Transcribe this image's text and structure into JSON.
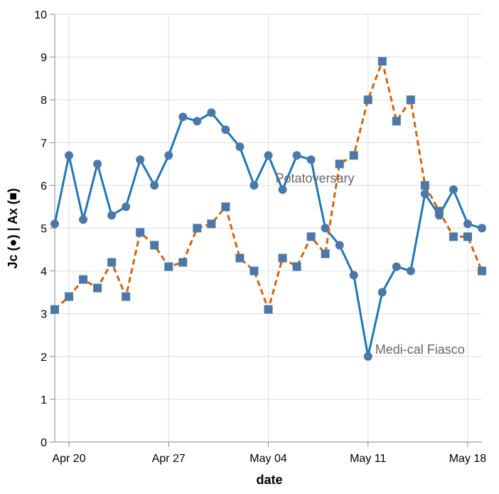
{
  "chart_data": {
    "type": "line",
    "xlabel": "date",
    "ylabel": "Jc (●) | Ax (■)",
    "ylim": [
      0,
      10
    ],
    "yticks": [
      0,
      1,
      2,
      3,
      4,
      5,
      6,
      7,
      8,
      9,
      10
    ],
    "xlim": [
      "2020-04-19",
      "2020-05-19"
    ],
    "xticks": [
      {
        "date": "2020-04-20",
        "label": "Apr 20"
      },
      {
        "date": "2020-04-27",
        "label": "Apr 27"
      },
      {
        "date": "2020-05-04",
        "label": "May 04"
      },
      {
        "date": "2020-05-11",
        "label": "May 11"
      },
      {
        "date": "2020-05-18",
        "label": "May 18"
      }
    ],
    "grid": true,
    "x": [
      "2020-04-19",
      "2020-04-20",
      "2020-04-21",
      "2020-04-22",
      "2020-04-23",
      "2020-04-24",
      "2020-04-25",
      "2020-04-26",
      "2020-04-27",
      "2020-04-28",
      "2020-04-29",
      "2020-04-30",
      "2020-05-01",
      "2020-05-02",
      "2020-05-03",
      "2020-05-04",
      "2020-05-05",
      "2020-05-06",
      "2020-05-07",
      "2020-05-08",
      "2020-05-09",
      "2020-05-10",
      "2020-05-11",
      "2020-05-12",
      "2020-05-13",
      "2020-05-14",
      "2020-05-15",
      "2020-05-16",
      "2020-05-17",
      "2020-05-18",
      "2020-05-19"
    ],
    "series": [
      {
        "key": "jc",
        "marker": "circle",
        "line_style": "solid",
        "line_color": "#1f77b4",
        "marker_color": "#4c78a8",
        "values": [
          5.1,
          6.7,
          5.2,
          6.5,
          5.3,
          5.5,
          6.6,
          6.0,
          6.7,
          7.6,
          7.5,
          7.7,
          7.3,
          6.9,
          6.0,
          6.7,
          5.9,
          6.7,
          6.6,
          5.0,
          4.6,
          3.9,
          2.0,
          3.5,
          4.1,
          4.0,
          5.8,
          5.3,
          5.9,
          5.1,
          5.0
        ]
      },
      {
        "key": "ax",
        "marker": "square",
        "line_style": "dashed",
        "line_color": "#d4620a",
        "marker_color": "#4c78a8",
        "values": [
          3.1,
          3.4,
          3.8,
          3.6,
          4.2,
          3.4,
          4.9,
          4.6,
          4.1,
          4.2,
          5.0,
          5.1,
          5.5,
          4.3,
          4.0,
          3.1,
          4.3,
          4.1,
          4.8,
          4.4,
          6.5,
          6.7,
          8.0,
          8.9,
          7.5,
          8.0,
          6.0,
          5.4,
          4.8,
          4.8,
          4.0
        ]
      }
    ],
    "annotations": [
      {
        "text": "Potatoversary",
        "x": "2020-05-04",
        "y": 6.0
      },
      {
        "text": "Medi-cal Fiasco",
        "x": "2020-05-11",
        "y": 2.0
      }
    ]
  }
}
